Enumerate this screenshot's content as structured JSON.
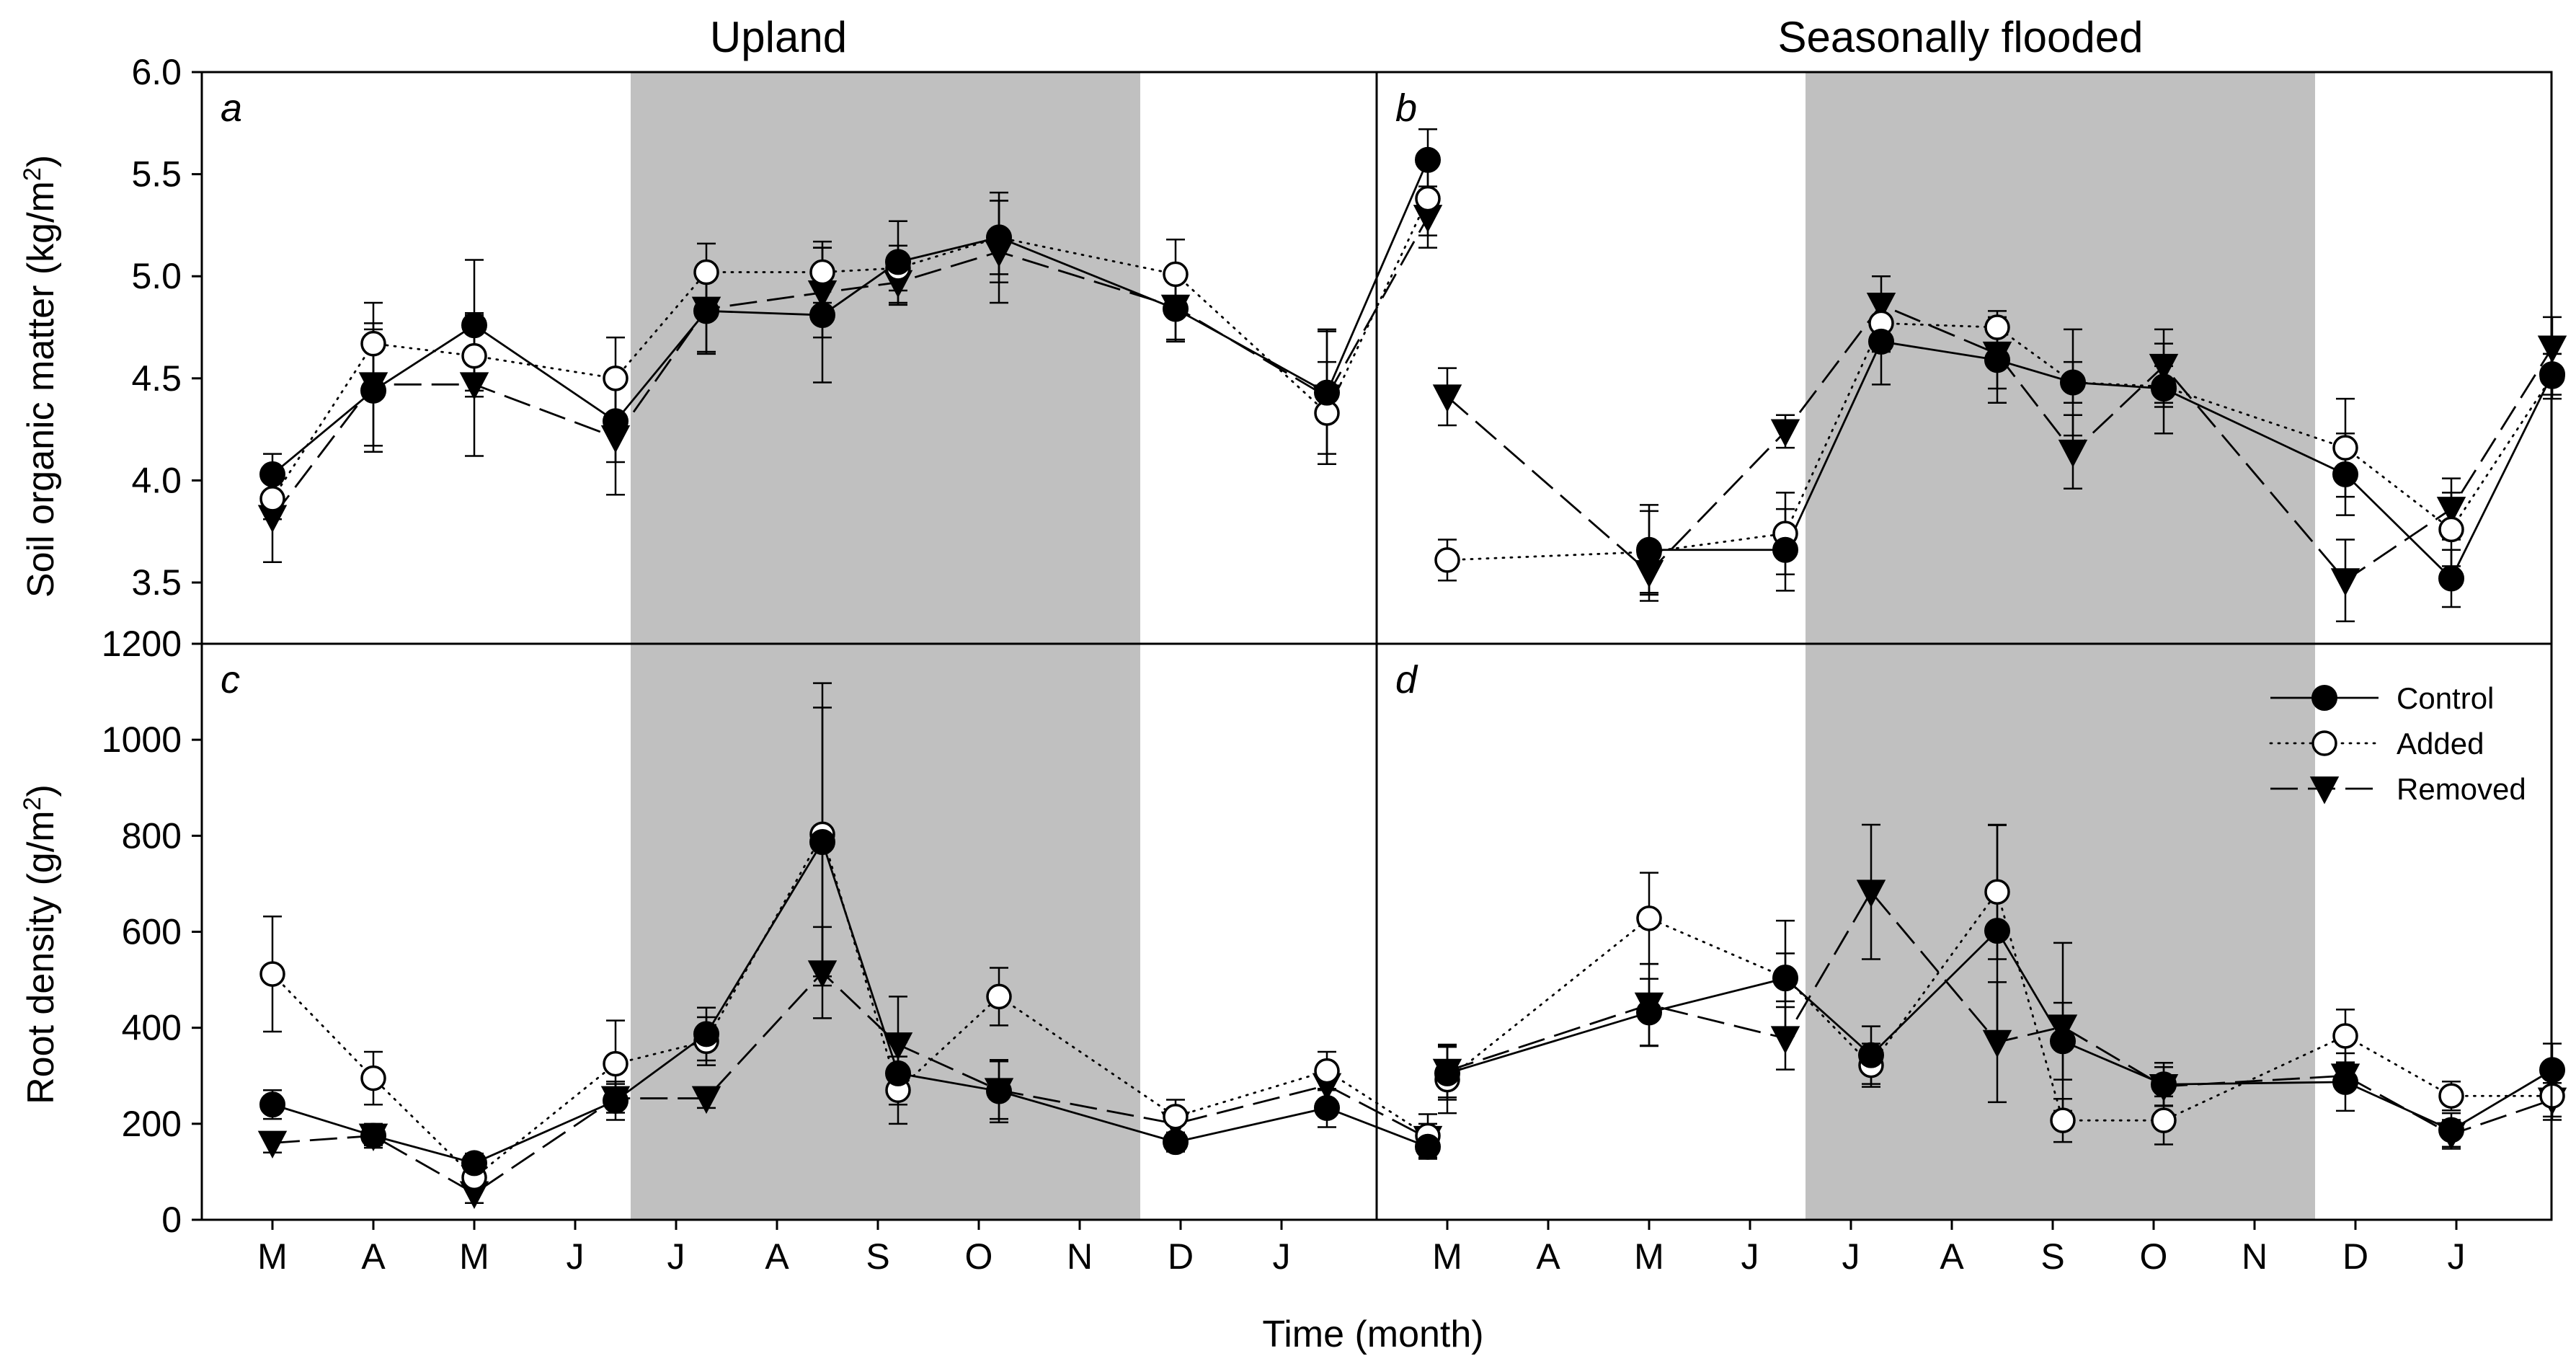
{
  "figure": {
    "column_titles": [
      "Upland",
      "Seasonally flooded"
    ],
    "xlabel": "Time (month)",
    "ylabel_top": {
      "main": "Soil organic matter (kg/m",
      "sup": "2",
      "end": ")"
    },
    "ylabel_bottom": {
      "main": "Root density (g/m",
      "sup": "2",
      "end": ")"
    },
    "month_labels": [
      "M",
      "A",
      "M",
      "J",
      "J",
      "A",
      "S",
      "O",
      "N",
      "D",
      "J"
    ],
    "shade_ranges_months": [
      [
        3.55,
        8.6
      ]
    ],
    "legend": [
      {
        "key": "control",
        "label": "Control"
      },
      {
        "key": "added",
        "label": "Added"
      },
      {
        "key": "removed",
        "label": "Removed"
      }
    ]
  },
  "chart_data": [
    {
      "id": "a",
      "panel_label": "a",
      "type": "line",
      "title": "Upland",
      "ylim": [
        3.2,
        6.0
      ],
      "yticks": [
        "3.5",
        "4.0",
        "4.5",
        "5.0",
        "5.5",
        "6.0"
      ],
      "series": [
        {
          "name": "Control",
          "key": "control",
          "points": [
            {
              "x": 0.0,
              "y": 4.03,
              "e": 0.1
            },
            {
              "x": 1.0,
              "y": 4.44,
              "e": 0.3
            },
            {
              "x": 2.0,
              "y": 4.76,
              "e": 0.32
            },
            {
              "x": 3.4,
              "y": 4.29,
              "e": 0.2
            },
            {
              "x": 4.3,
              "y": 4.83,
              "e": 0.2
            },
            {
              "x": 5.45,
              "y": 4.81,
              "e": 0.33
            },
            {
              "x": 6.2,
              "y": 5.07,
              "e": 0.2
            },
            {
              "x": 7.2,
              "y": 5.19,
              "e": 0.22
            },
            {
              "x": 8.95,
              "y": 4.84,
              "e": 0.15
            },
            {
              "x": 10.45,
              "y": 4.43,
              "e": 0.3
            },
            {
              "x": 11.45,
              "y": 5.57,
              "e": 0.15
            }
          ]
        },
        {
          "name": "Added",
          "key": "added",
          "points": [
            {
              "x": 0.0,
              "y": 3.91,
              "e": 0.1
            },
            {
              "x": 1.0,
              "y": 4.67,
              "e": 0.2
            },
            {
              "x": 2.0,
              "y": 4.61,
              "e": 0.2
            },
            {
              "x": 3.4,
              "y": 4.5,
              "e": 0.2
            },
            {
              "x": 4.3,
              "y": 5.02,
              "e": 0.14
            },
            {
              "x": 5.45,
              "y": 5.02,
              "e": 0.15
            },
            {
              "x": 6.2,
              "y": 5.04,
              "e": 0.11
            },
            {
              "x": 7.2,
              "y": 5.19,
              "e": 0.18
            },
            {
              "x": 8.95,
              "y": 5.01,
              "e": 0.17
            },
            {
              "x": 10.45,
              "y": 4.33,
              "e": 0.25
            },
            {
              "x": 11.45,
              "y": 5.38,
              "e": 0.18
            }
          ]
        },
        {
          "name": "Removed",
          "key": "removed",
          "points": [
            {
              "x": 0.0,
              "y": 3.82,
              "e": 0.22
            },
            {
              "x": 1.0,
              "y": 4.47,
              "e": 0.3
            },
            {
              "x": 2.0,
              "y": 4.47,
              "e": 0.35
            },
            {
              "x": 3.4,
              "y": 4.21,
              "e": 0.28
            },
            {
              "x": 4.3,
              "y": 4.84,
              "e": 0.22
            },
            {
              "x": 5.45,
              "y": 4.92,
              "e": 0.22
            },
            {
              "x": 6.2,
              "y": 4.97,
              "e": 0.11
            },
            {
              "x": 7.2,
              "y": 5.12,
              "e": 0.25
            },
            {
              "x": 8.95,
              "y": 4.85,
              "e": 0.17
            },
            {
              "x": 10.45,
              "y": 4.41,
              "e": 0.33
            },
            {
              "x": 11.45,
              "y": 5.29,
              "e": 0.15
            }
          ]
        }
      ]
    },
    {
      "id": "b",
      "panel_label": "b",
      "type": "line",
      "title": "Seasonally flooded",
      "ylim": [
        3.2,
        6.0
      ],
      "yticks": [],
      "series": [
        {
          "name": "Control",
          "key": "control",
          "points": [
            {
              "x": 2.0,
              "y": 3.66,
              "e": 0.22
            },
            {
              "x": 3.35,
              "y": 3.66,
              "e": 0.2
            },
            {
              "x": 4.3,
              "y": 4.68,
              "e": 0.21
            },
            {
              "x": 5.45,
              "y": 4.59,
              "e": 0.21
            },
            {
              "x": 6.2,
              "y": 4.48,
              "e": 0.26
            },
            {
              "x": 7.1,
              "y": 4.45,
              "e": 0.22
            },
            {
              "x": 8.9,
              "y": 4.03,
              "e": 0.2
            },
            {
              "x": 9.95,
              "y": 3.52,
              "e": 0.14
            },
            {
              "x": 10.95,
              "y": 4.52,
              "e": 0.1
            }
          ]
        },
        {
          "name": "Added",
          "key": "added",
          "points": [
            {
              "x": 0.0,
              "y": 3.61,
              "e": 0.1
            },
            {
              "x": 2.0,
              "y": 3.65,
              "e": 0.2
            },
            {
              "x": 3.35,
              "y": 3.74,
              "e": 0.2
            },
            {
              "x": 4.3,
              "y": 4.77,
              "e": 0.14
            },
            {
              "x": 5.45,
              "y": 4.75,
              "e": 0.08
            },
            {
              "x": 6.2,
              "y": 4.48,
              "e": 0.1
            },
            {
              "x": 7.1,
              "y": 4.46,
              "e": 0.1
            },
            {
              "x": 8.9,
              "y": 4.16,
              "e": 0.24
            },
            {
              "x": 9.95,
              "y": 3.76,
              "e": 0.18
            },
            {
              "x": 10.95,
              "y": 4.51,
              "e": 0.11
            }
          ]
        },
        {
          "name": "Removed",
          "key": "removed",
          "points": [
            {
              "x": 0.0,
              "y": 4.41,
              "e": 0.14
            },
            {
              "x": 2.0,
              "y": 3.55,
              "e": 0.14
            },
            {
              "x": 3.35,
              "y": 4.24,
              "e": 0.08
            },
            {
              "x": 4.3,
              "y": 4.86,
              "e": 0.14
            },
            {
              "x": 5.45,
              "y": 4.62,
              "e": 0.17
            },
            {
              "x": 6.2,
              "y": 4.14,
              "e": 0.18
            },
            {
              "x": 7.1,
              "y": 4.56,
              "e": 0.18
            },
            {
              "x": 8.9,
              "y": 3.51,
              "e": 0.2
            },
            {
              "x": 9.95,
              "y": 3.86,
              "e": 0.15
            },
            {
              "x": 10.95,
              "y": 4.65,
              "e": 0.15
            }
          ]
        }
      ]
    },
    {
      "id": "c",
      "panel_label": "c",
      "type": "line",
      "ylim": [
        0,
        1200
      ],
      "yticks": [
        "0",
        "200",
        "400",
        "600",
        "800",
        "1000",
        "1200"
      ],
      "series": [
        {
          "name": "Control",
          "key": "control",
          "points": [
            {
              "x": 0.0,
              "y": 240,
              "e": 30
            },
            {
              "x": 1.0,
              "y": 175,
              "e": 25
            },
            {
              "x": 2.0,
              "y": 118,
              "e": 20
            },
            {
              "x": 3.4,
              "y": 248,
              "e": 40
            },
            {
              "x": 4.3,
              "y": 387,
              "e": 55
            },
            {
              "x": 5.45,
              "y": 787,
              "e": 280
            },
            {
              "x": 6.2,
              "y": 305,
              "e": 65
            },
            {
              "x": 7.2,
              "y": 268,
              "e": 65
            },
            {
              "x": 8.95,
              "y": 162,
              "e": 20
            },
            {
              "x": 10.45,
              "y": 233,
              "e": 40
            },
            {
              "x": 11.45,
              "y": 152,
              "e": 25
            }
          ]
        },
        {
          "name": "Added",
          "key": "added",
          "points": [
            {
              "x": 0.0,
              "y": 512,
              "e": 120
            },
            {
              "x": 1.0,
              "y": 295,
              "e": 55
            },
            {
              "x": 2.0,
              "y": 88,
              "e": 25
            },
            {
              "x": 3.4,
              "y": 325,
              "e": 90
            },
            {
              "x": 4.3,
              "y": 372,
              "e": 50
            },
            {
              "x": 5.45,
              "y": 803,
              "e": 315
            },
            {
              "x": 6.2,
              "y": 270,
              "e": 70
            },
            {
              "x": 7.2,
              "y": 465,
              "e": 60
            },
            {
              "x": 8.95,
              "y": 215,
              "e": 35
            },
            {
              "x": 10.45,
              "y": 310,
              "e": 40
            },
            {
              "x": 11.45,
              "y": 175,
              "e": 45
            }
          ]
        },
        {
          "name": "Removed",
          "key": "removed",
          "points": [
            {
              "x": 0.0,
              "y": 160,
              "e": 20
            },
            {
              "x": 1.0,
              "y": 175,
              "e": 20
            },
            {
              "x": 2.0,
              "y": 55,
              "e": 20
            },
            {
              "x": 3.4,
              "y": 253,
              "e": 30
            },
            {
              "x": 4.3,
              "y": 253,
              "e": 20
            },
            {
              "x": 5.45,
              "y": 515,
              "e": 95
            },
            {
              "x": 6.2,
              "y": 365,
              "e": 100
            },
            {
              "x": 7.2,
              "y": 270,
              "e": 60
            },
            {
              "x": 8.95,
              "y": 200,
              "e": 30
            },
            {
              "x": 10.45,
              "y": 280,
              "e": 40
            },
            {
              "x": 11.45,
              "y": 170,
              "e": 30
            }
          ]
        }
      ]
    },
    {
      "id": "d",
      "panel_label": "d",
      "type": "line",
      "ylim": [
        0,
        1200
      ],
      "yticks": [],
      "series": [
        {
          "name": "Control",
          "key": "control",
          "points": [
            {
              "x": 0.0,
              "y": 305,
              "e": 55
            },
            {
              "x": 2.0,
              "y": 432,
              "e": 70
            },
            {
              "x": 3.35,
              "y": 503,
              "e": 120
            },
            {
              "x": 4.2,
              "y": 343,
              "e": 60
            },
            {
              "x": 5.45,
              "y": 602,
              "e": 220
            },
            {
              "x": 6.1,
              "y": 372,
              "e": 80
            },
            {
              "x": 7.1,
              "y": 282,
              "e": 45
            },
            {
              "x": 8.9,
              "y": 287,
              "e": 60
            },
            {
              "x": 9.95,
              "y": 187,
              "e": 35
            },
            {
              "x": 10.95,
              "y": 312,
              "e": 55
            }
          ]
        },
        {
          "name": "Added",
          "key": "added",
          "points": [
            {
              "x": 0.0,
              "y": 292,
              "e": 70
            },
            {
              "x": 2.0,
              "y": 628,
              "e": 95
            },
            {
              "x": 3.35,
              "y": 505,
              "e": 50
            },
            {
              "x": 4.2,
              "y": 322,
              "e": 45
            },
            {
              "x": 5.45,
              "y": 683,
              "e": 140
            },
            {
              "x": 6.1,
              "y": 207,
              "e": 45
            },
            {
              "x": 7.1,
              "y": 207,
              "e": 50
            },
            {
              "x": 8.9,
              "y": 383,
              "e": 55
            },
            {
              "x": 9.95,
              "y": 258,
              "e": 30
            },
            {
              "x": 10.95,
              "y": 258,
              "e": 50
            }
          ]
        },
        {
          "name": "Removed",
          "key": "removed",
          "points": [
            {
              "x": 0.0,
              "y": 310,
              "e": 55
            },
            {
              "x": 2.0,
              "y": 448,
              "e": 85
            },
            {
              "x": 3.35,
              "y": 378,
              "e": 65
            },
            {
              "x": 4.2,
              "y": 683,
              "e": 140
            },
            {
              "x": 5.45,
              "y": 370,
              "e": 125
            },
            {
              "x": 6.1,
              "y": 402,
              "e": 175
            },
            {
              "x": 7.1,
              "y": 278,
              "e": 40
            },
            {
              "x": 8.9,
              "y": 300,
              "e": 25
            },
            {
              "x": 9.95,
              "y": 178,
              "e": 30
            },
            {
              "x": 10.95,
              "y": 250,
              "e": 35
            }
          ]
        }
      ]
    }
  ]
}
